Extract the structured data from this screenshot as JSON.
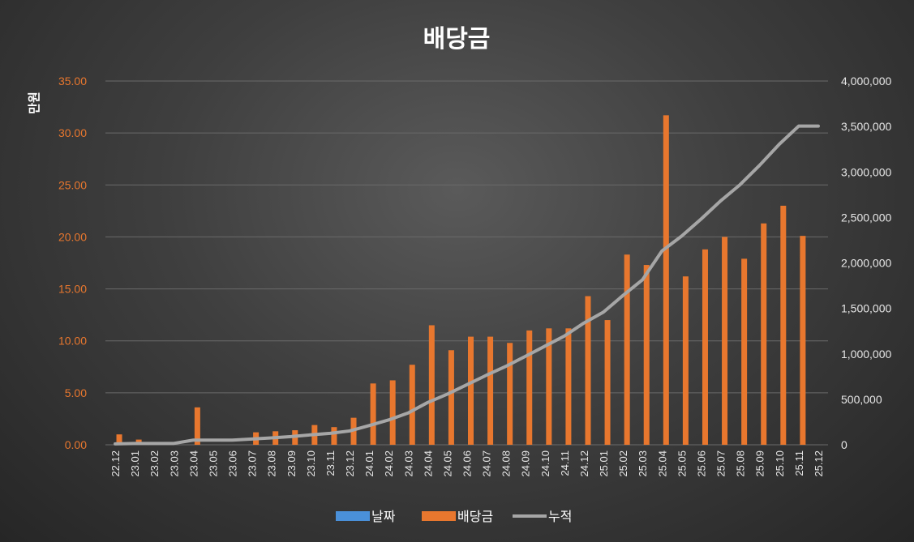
{
  "chart_data": {
    "type": "bar",
    "title": "배당금",
    "ylabel": "만원",
    "ylim": [
      0,
      35
    ],
    "y2lim": [
      0,
      4000000
    ],
    "yticks_left": [
      "0.00",
      "5.00",
      "10.00",
      "15.00",
      "20.00",
      "25.00",
      "30.00",
      "35.00"
    ],
    "yticks_right": [
      "0",
      "500,000",
      "1,000,000",
      "1,500,000",
      "2,000,000",
      "2,500,000",
      "3,000,000",
      "3,500,000",
      "4,000,000"
    ],
    "grid": true,
    "legend_position": "bottom",
    "categories": [
      "22.12",
      "23.01",
      "23.02",
      "23.03",
      "23.04",
      "23.05",
      "23.06",
      "23.07",
      "23.08",
      "23.09",
      "23.10",
      "23.11",
      "23.12",
      "24.01",
      "24.02",
      "24.03",
      "24.04",
      "24.05",
      "24.06",
      "24.07",
      "24.08",
      "24.09",
      "24.10",
      "24.11",
      "24.12",
      "25.01",
      "25.02",
      "25.03",
      "25.04",
      "25.05",
      "25.06",
      "25.07",
      "25.08",
      "25.09",
      "25.10",
      "25.11",
      "25.12"
    ],
    "series": [
      {
        "name": "날짜",
        "color": "#4a90d9",
        "type": "bar",
        "values": [
          0,
          0,
          0,
          0,
          0,
          0,
          0,
          0,
          0,
          0,
          0,
          0,
          0,
          0,
          0,
          0,
          0,
          0,
          0,
          0,
          0,
          0,
          0,
          0,
          0,
          0,
          0,
          0,
          0,
          0,
          0,
          0,
          0,
          0,
          0,
          0,
          0
        ]
      },
      {
        "name": "배당금",
        "color": "#e8772e",
        "type": "bar",
        "axis": "left",
        "values": [
          1.0,
          0.5,
          0,
          0,
          3.6,
          0,
          0,
          1.2,
          1.3,
          1.4,
          1.9,
          1.7,
          2.6,
          5.9,
          6.2,
          7.7,
          11.5,
          9.1,
          10.4,
          10.4,
          9.8,
          11.0,
          11.2,
          11.2,
          14.3,
          12.0,
          18.3,
          17.3,
          31.7,
          16.2,
          18.8,
          20.0,
          17.9,
          21.3,
          23.0,
          20.1,
          0
        ]
      },
      {
        "name": "누적",
        "color": "#a6a6a6",
        "type": "line",
        "axis": "right",
        "values": [
          10000,
          15000,
          15000,
          15000,
          51000,
          51000,
          51000,
          63000,
          76000,
          90000,
          109000,
          126000,
          152000,
          211000,
          273000,
          350000,
          465000,
          556000,
          660000,
          764000,
          862000,
          972000,
          1084000,
          1196000,
          1339000,
          1459000,
          1642000,
          1815000,
          2132000,
          2294000,
          2482000,
          2682000,
          2861000,
          3074000,
          3304000,
          3505000,
          3505000
        ]
      }
    ]
  }
}
